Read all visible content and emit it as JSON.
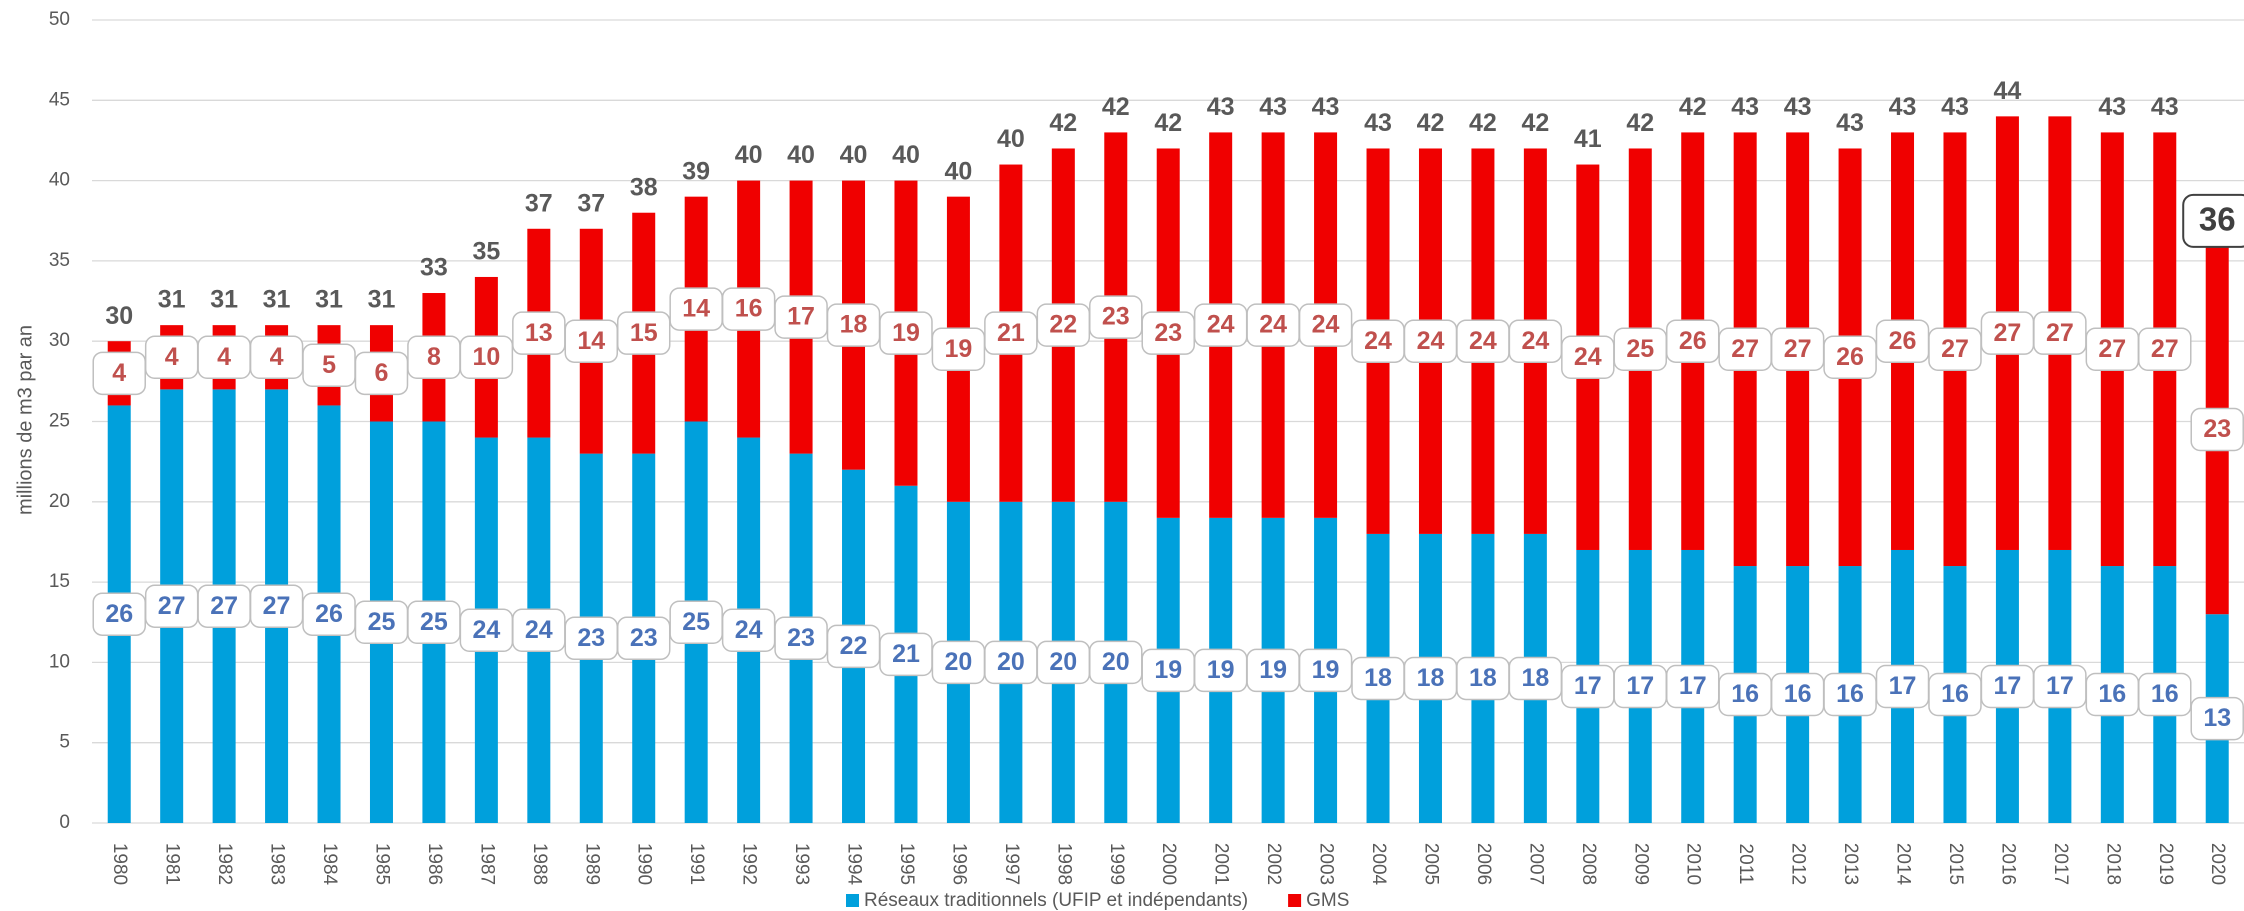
{
  "chart_data": {
    "type": "stacked_bar",
    "y_label": "millions de m3 par an",
    "categories": [
      "1980",
      "1981",
      "1982",
      "1983",
      "1984",
      "1985",
      "1986",
      "1987",
      "1988",
      "1989",
      "1990",
      "1991",
      "1992",
      "1993",
      "1994",
      "1995",
      "1996",
      "1997",
      "1998",
      "1999",
      "2000",
      "2001",
      "2002",
      "2003",
      "2004",
      "2005",
      "2006",
      "2007",
      "2008",
      "2009",
      "2010",
      "2011",
      "2012",
      "2013",
      "2014",
      "2015",
      "2016",
      "2017",
      "2018",
      "2019",
      "2020"
    ],
    "series": [
      {
        "name": "Réseaux traditionnels (UFIP et indépendants)",
        "color": "#00a0dc",
        "label_color": "#4a72b8",
        "values": [
          26,
          27,
          27,
          27,
          26,
          25,
          25,
          24,
          24,
          23,
          23,
          25,
          24,
          23,
          22,
          21,
          20,
          20,
          20,
          20,
          19,
          19,
          19,
          19,
          18,
          18,
          18,
          18,
          17,
          17,
          17,
          16,
          16,
          16,
          17,
          16,
          17,
          17,
          16,
          16,
          13
        ]
      },
      {
        "name": "GMS",
        "color": "#f00000",
        "label_color": "#c0504d",
        "values": [
          4,
          4,
          4,
          4,
          5,
          6,
          8,
          10,
          13,
          14,
          15,
          14,
          16,
          17,
          18,
          19,
          19,
          21,
          22,
          23,
          23,
          24,
          24,
          24,
          24,
          24,
          24,
          24,
          24,
          25,
          26,
          27,
          27,
          26,
          26,
          27,
          27,
          27,
          27,
          27,
          23
        ]
      }
    ],
    "totals": [
      30,
      31,
      31,
      31,
      31,
      31,
      33,
      35,
      37,
      37,
      38,
      39,
      40,
      40,
      40,
      40,
      40,
      40,
      42,
      42,
      42,
      43,
      43,
      43,
      43,
      42,
      42,
      42,
      41,
      42,
      42,
      43,
      43,
      43,
      43,
      43,
      44,
      null,
      43,
      43,
      36
    ],
    "ylim": [
      0,
      50
    ],
    "yticks": [
      0,
      5,
      10,
      15,
      20,
      25,
      30,
      35,
      40,
      45,
      50
    ],
    "grid": true,
    "legend": "bottom"
  }
}
